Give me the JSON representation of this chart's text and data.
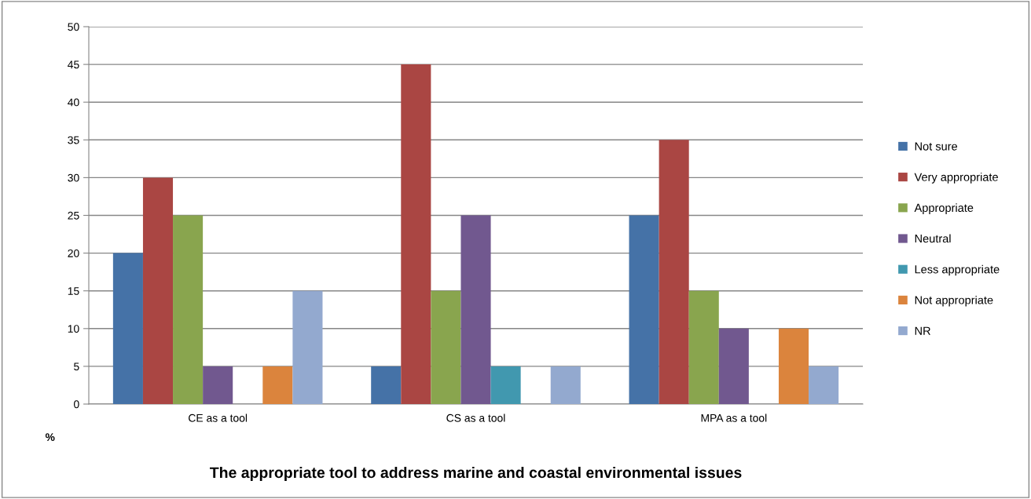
{
  "chart_data": {
    "type": "bar",
    "title": "The appropriate tool to address marine and coastal environmental issues",
    "ylabel": "%",
    "categories": [
      "CE as a tool",
      "CS as a tool",
      "MPA as a tool"
    ],
    "series": [
      {
        "name": "Not sure",
        "color": "#4572a7",
        "values": [
          20,
          5,
          25
        ]
      },
      {
        "name": "Very appropriate",
        "color": "#aa4643",
        "values": [
          30,
          45,
          35
        ]
      },
      {
        "name": "Appropriate",
        "color": "#89a54e",
        "values": [
          25,
          15,
          15
        ]
      },
      {
        "name": "Neutral",
        "color": "#71588f",
        "values": [
          5,
          25,
          10
        ]
      },
      {
        "name": "Less appropriate",
        "color": "#4198af",
        "values": [
          0,
          5,
          0
        ]
      },
      {
        "name": "Not appropriate",
        "color": "#db843d",
        "values": [
          5,
          0,
          10
        ]
      },
      {
        "name": "NR",
        "color": "#93a9cf",
        "values": [
          15,
          5,
          5
        ]
      }
    ],
    "ylim": [
      0,
      50
    ],
    "yticks": [
      0,
      5,
      10,
      15,
      20,
      25,
      30,
      35,
      40,
      45,
      50
    ],
    "grid": "y",
    "legend": "right"
  }
}
